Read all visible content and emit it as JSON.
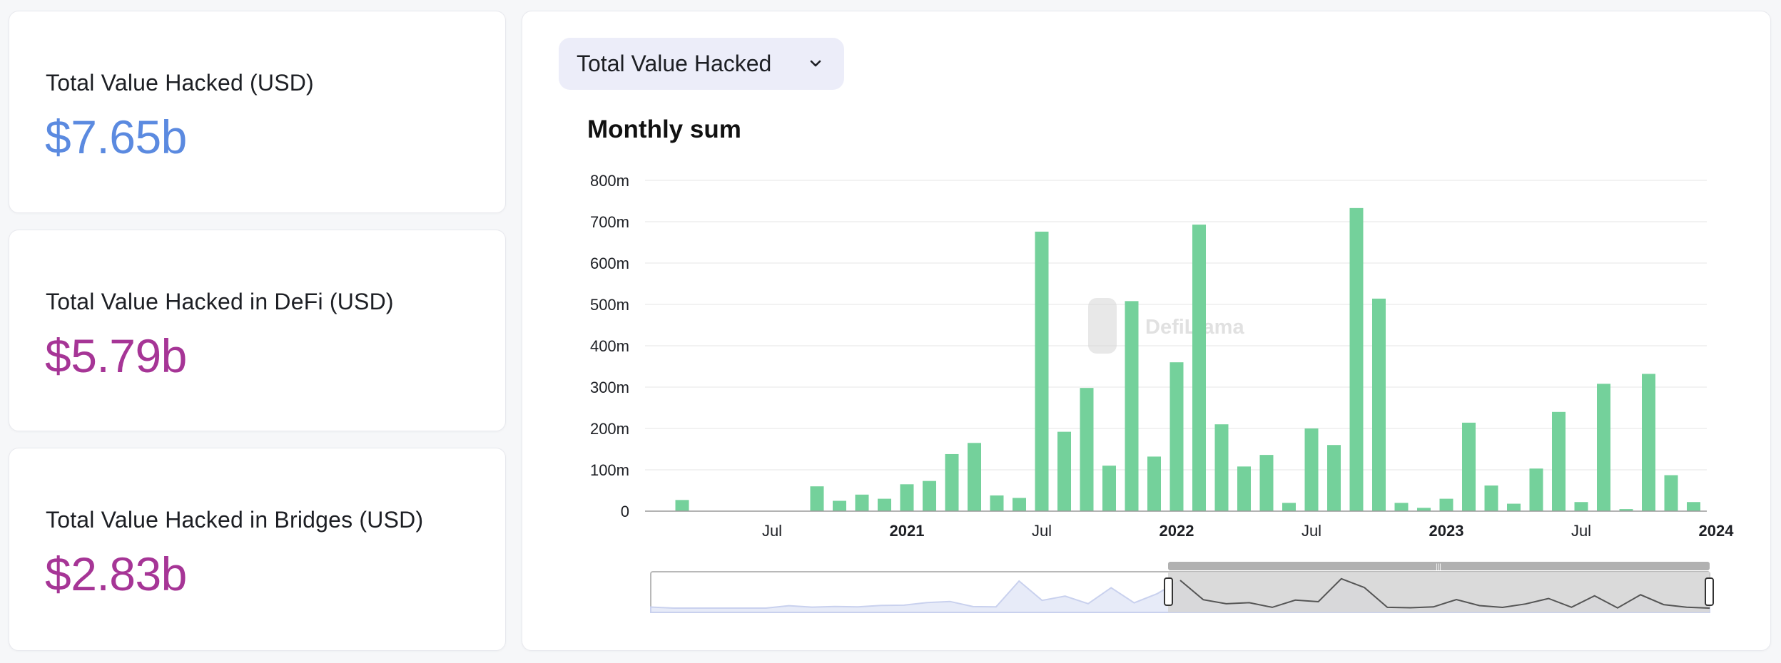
{
  "stats": [
    {
      "label": "Total Value Hacked (USD)",
      "value": "$7.65b",
      "color": "#5b8ae0"
    },
    {
      "label": "Total Value Hacked in DeFi (USD)",
      "value": "$5.79b",
      "color": "#a63596"
    },
    {
      "label": "Total Value Hacked in Bridges (USD)",
      "value": "$2.83b",
      "color": "#a63596"
    }
  ],
  "selector": {
    "label": "Total Value Hacked"
  },
  "watermark": "DefiLlama",
  "chart_data": {
    "type": "bar",
    "title": "Monthly sum",
    "xlabel": "",
    "ylabel": "",
    "ylim": [
      0,
      800
    ],
    "y_unit": "m (USD)",
    "y_ticks": [
      "0",
      "100m",
      "200m",
      "300m",
      "400m",
      "500m",
      "600m",
      "700m",
      "800m"
    ],
    "x_ticks": [
      "Jul",
      "2021",
      "Jul",
      "2022",
      "Jul",
      "2023",
      "Jul",
      "2024"
    ],
    "bar_color": "#74d19b",
    "grid": true,
    "legend": "none",
    "categories": [
      "2020-03",
      "2020-04",
      "2020-05",
      "2020-06",
      "2020-07",
      "2020-08",
      "2020-09",
      "2020-10",
      "2020-11",
      "2020-12",
      "2021-01",
      "2021-02",
      "2021-03",
      "2021-04",
      "2021-05",
      "2021-06",
      "2021-07",
      "2021-08",
      "2021-09",
      "2021-10",
      "2021-11",
      "2021-12",
      "2022-01",
      "2022-02",
      "2022-03",
      "2022-04",
      "2022-05",
      "2022-06",
      "2022-07",
      "2022-08",
      "2022-09",
      "2022-10",
      "2022-11",
      "2022-12",
      "2023-01",
      "2023-02",
      "2023-03",
      "2023-04",
      "2023-05",
      "2023-06",
      "2023-07",
      "2023-08",
      "2023-09",
      "2023-10",
      "2023-11",
      "2023-12",
      "2024-01"
    ],
    "values": [
      27,
      0,
      0,
      0,
      0,
      0,
      60,
      25,
      40,
      30,
      65,
      73,
      138,
      165,
      38,
      32,
      676,
      192,
      298,
      110,
      508,
      132,
      360,
      693,
      210,
      108,
      136,
      20,
      200,
      160,
      733,
      514,
      20,
      8,
      30,
      214,
      62,
      18,
      103,
      240,
      22,
      308,
      5,
      332,
      87,
      22,
      0
    ]
  }
}
